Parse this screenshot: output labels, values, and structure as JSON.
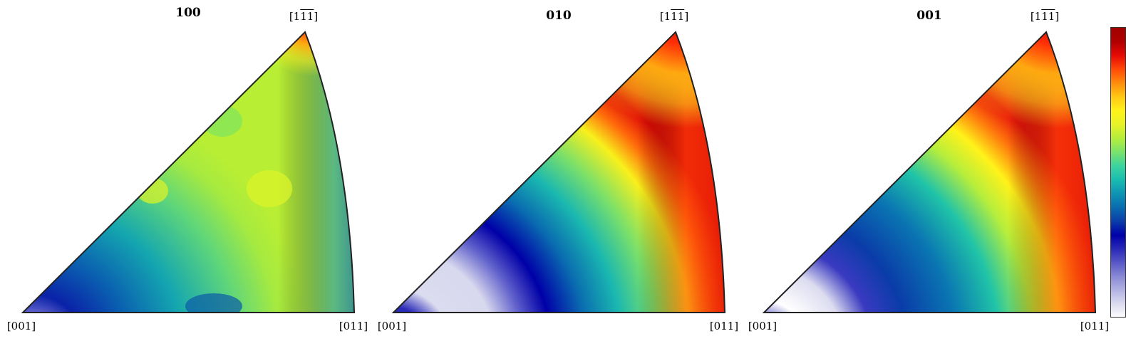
{
  "panels": [
    {
      "title": "100",
      "labels": {
        "top": [
          "[1",
          "1",
          "1",
          "]"
        ],
        "left": "[001]",
        "right": "[011]"
      },
      "bands": [
        "#0a52a8",
        "#0a6db0",
        "#0e86b4",
        "#14a6b0",
        "#20c2a6",
        "#3fd38e",
        "#5cdc72",
        "#82e45a",
        "#a4ec40",
        "#c6f030",
        "#e2f228",
        "#fff21a",
        "#ffd814",
        "#ffae10",
        "#ff800c",
        "#ff4a08",
        "#f01606",
        "#c00000",
        "#a00000"
      ],
      "fill": "#a8ea38",
      "gradient": [
        [
          "0",
          "#2a4cc8"
        ],
        [
          "0.05",
          "#1f3fc0"
        ],
        [
          "0.12",
          "#0b2ca8"
        ],
        [
          "0.22",
          "#0a5db0"
        ],
        [
          "0.35",
          "#1891b4"
        ],
        [
          "0.50",
          "#20b9a6"
        ],
        [
          "0.65",
          "#5ed67a"
        ],
        [
          "0.78",
          "#9fe94a"
        ],
        [
          "0.88",
          "#c6f030"
        ],
        [
          "1",
          "#b9ed34"
        ]
      ]
    },
    {
      "title": "010",
      "labels": {
        "top": [
          "[1",
          "1",
          "1",
          "]"
        ],
        "left": "[001]",
        "right": "[011]"
      },
      "fill": "#20c8b0"
    },
    {
      "title": "001",
      "labels": {
        "top": [
          "[1",
          "1",
          "1",
          "]"
        ],
        "left": "[001]",
        "right": "[011]"
      },
      "fill": "#1aa6b2"
    }
  ],
  "colorbar": {
    "stops": [
      "#ffffff",
      "#dcdcf0",
      "#b4b4e4",
      "#8a8ad6",
      "#5a5ac8",
      "#2a2ab8",
      "#0000a8",
      "#0a3ca8",
      "#0a6cb0",
      "#0e94b4",
      "#18bcb0",
      "#3cd4a0",
      "#78e26c",
      "#b4ee3c",
      "#e6f228",
      "#fff21a",
      "#ffc814",
      "#ff8c0c",
      "#ff4a08",
      "#e60a06",
      "#b00000",
      "#a00000"
    ]
  }
}
